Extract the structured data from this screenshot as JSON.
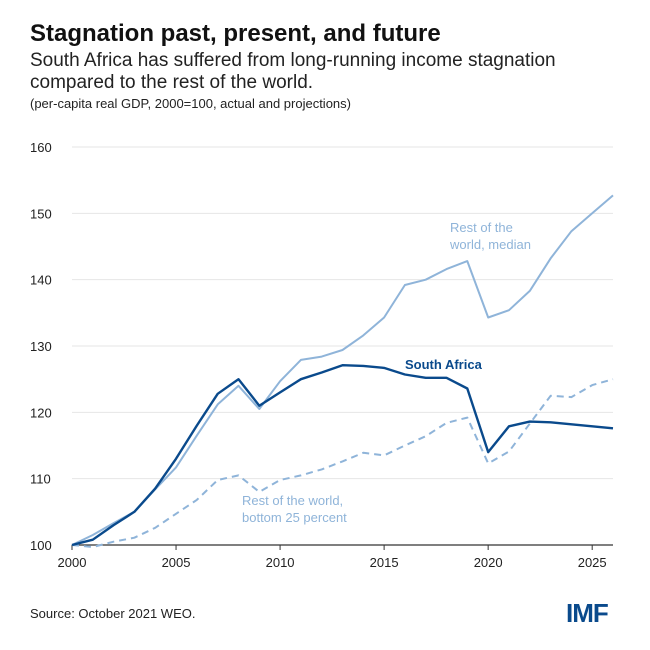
{
  "header": {
    "title": "Stagnation past, present, and future",
    "subtitle": "South Africa has suffered from long-running income stagnation compared to the rest of the world.",
    "note": "(per-capita real GDP, 2000=100, actual and projections)"
  },
  "footer": {
    "source": "Source: October 2021 WEO.",
    "logo": "IMF"
  },
  "colors": {
    "south_africa": "#0a4a8c",
    "rest_of_world": "#8fb4d9",
    "grid": "#e6e6e6"
  },
  "chart_data": {
    "type": "line",
    "title": "Stagnation past, present, and future",
    "xlabel": "",
    "ylabel": "",
    "xlim": [
      2000,
      2026
    ],
    "ylim": [
      100,
      160
    ],
    "xticks": [
      2000,
      2005,
      2010,
      2015,
      2020,
      2025
    ],
    "yticks": [
      100,
      110,
      120,
      130,
      140,
      150,
      160
    ],
    "grid": true,
    "x": [
      2000,
      2001,
      2002,
      2003,
      2004,
      2005,
      2006,
      2007,
      2008,
      2009,
      2010,
      2011,
      2012,
      2013,
      2014,
      2015,
      2016,
      2017,
      2018,
      2019,
      2020,
      2021,
      2022,
      2023,
      2024,
      2025,
      2026
    ],
    "series": [
      {
        "name": "South Africa",
        "style": "solid",
        "color": "#0a4a8c",
        "label_lines": [
          "South Africa"
        ],
        "values": [
          100,
          100.8,
          103,
          105,
          108.5,
          113,
          118,
          122.8,
          125,
          121,
          123,
          125,
          126,
          127.1,
          127,
          126.7,
          125.7,
          125.2,
          125.2,
          123.6,
          114,
          117.9,
          118.6,
          118.5,
          118.2,
          117.9,
          117.6
        ]
      },
      {
        "name": "Rest of the world, median",
        "style": "solid",
        "color": "#8fb4d9",
        "label_lines": [
          "Rest of the",
          "world, median"
        ],
        "values": [
          100,
          101.5,
          103.3,
          105,
          108.4,
          111.7,
          116.5,
          121.2,
          124,
          120.5,
          124.7,
          127.9,
          128.4,
          129.4,
          131.6,
          134.3,
          139.2,
          140,
          141.6,
          142.8,
          134.3,
          135.4,
          138.3,
          143.2,
          147.3,
          150,
          152.7
        ]
      },
      {
        "name": "Rest of the world, bottom 25 percent",
        "style": "dashed",
        "color": "#8fb4d9",
        "label_lines": [
          "Rest of the world,",
          "bottom 25 percent"
        ],
        "values": [
          100,
          99.7,
          100.5,
          101.1,
          102.6,
          104.7,
          106.8,
          109.8,
          110.5,
          108,
          109.8,
          110.5,
          111.4,
          112.6,
          113.9,
          113.5,
          115,
          116.4,
          118.4,
          119.2,
          112.3,
          114.1,
          118.3,
          122.5,
          122.3,
          124.1,
          125
        ]
      }
    ]
  }
}
